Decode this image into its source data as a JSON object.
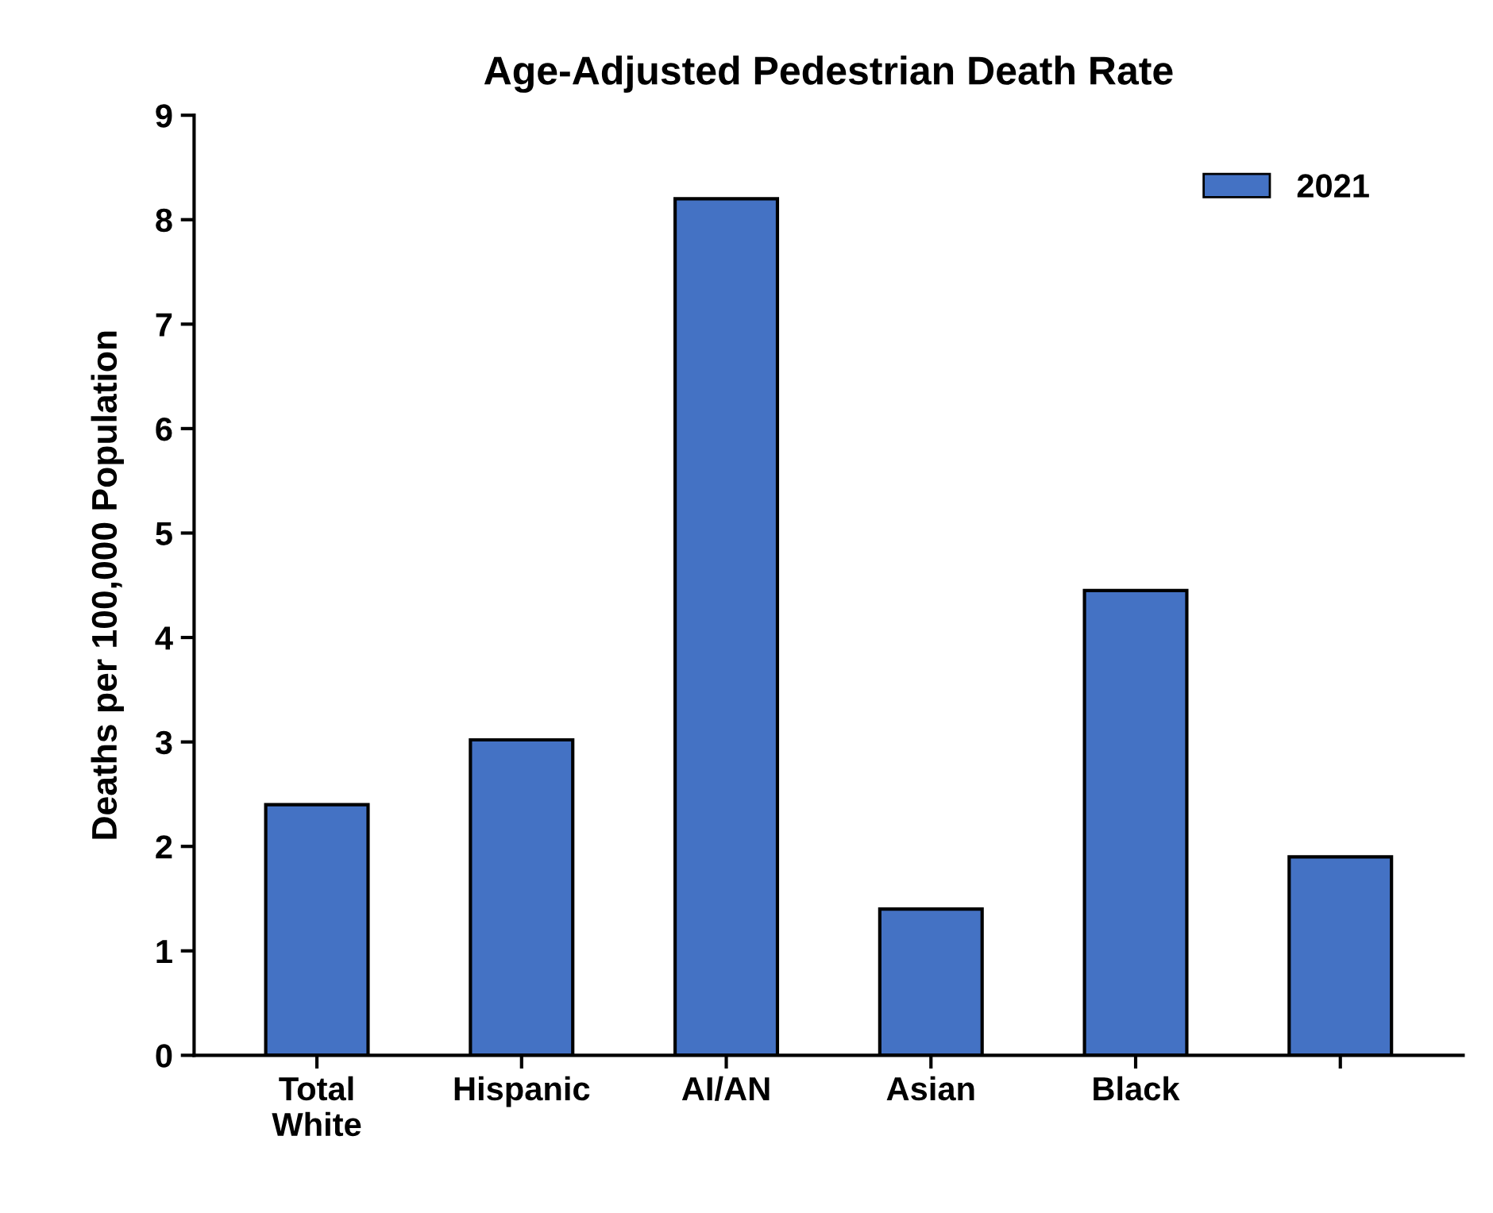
{
  "chart_data": {
    "type": "bar",
    "title": "Age-Adjusted Pedestrian Death Rate",
    "ylabel": "Deaths per 100,000 Population",
    "categories": [
      "Total\nWhite",
      "Hispanic",
      "AI/AN",
      "Asian",
      "Black",
      null
    ],
    "series": [
      {
        "name": "2021",
        "color": "#4472c4",
        "values": [
          2.4,
          3.02,
          8.2,
          1.4,
          4.45,
          1.9
        ]
      }
    ],
    "ylim": [
      0,
      9
    ],
    "yticks": [
      0,
      1,
      2,
      3,
      4,
      5,
      6,
      7,
      8,
      9
    ],
    "grid": false,
    "legend": "top right"
  }
}
